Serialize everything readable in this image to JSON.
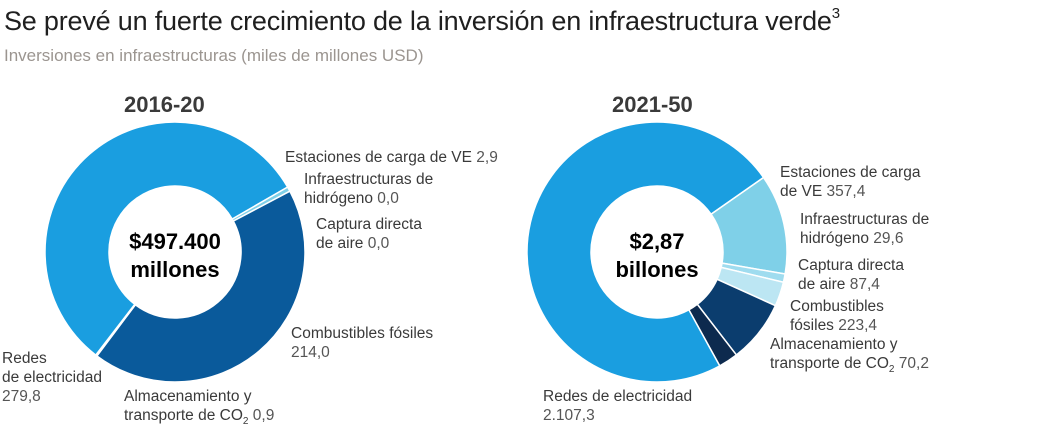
{
  "title": "Se prevé un fuerte crecimiento de la inversión en infraestructura verde",
  "title_footnote": "3",
  "subtitle": "Inversiones en infraestructuras (miles de millones USD)",
  "colors": {
    "redes": "#1a9ee0",
    "combustibles": "#0a5a9b",
    "almacenamiento": "#0d2c5a",
    "estaciones": "#7fd0e8",
    "hidrogeno": "#9fdcef",
    "captura": "#bce6f3",
    "combustibles_2": "#0b3d6e",
    "almacenamiento_2": "#0d2a4e"
  },
  "chart_data": [
    {
      "type": "pie",
      "title": "2016-20",
      "center_line1": "$497.400",
      "center_line2": "millones",
      "series": [
        {
          "name": "Estaciones de carga de VE",
          "value": 2.9,
          "label_value": "2,9"
        },
        {
          "name": "Infraestructuras de hidrógeno",
          "value": 0.0,
          "label_value": "0,0"
        },
        {
          "name": "Captura directa de aire",
          "value": 0.0,
          "label_value": "0,0"
        },
        {
          "name": "Combustibles fósiles",
          "value": 214.0,
          "label_value": "214,0"
        },
        {
          "name": "Almacenamiento y transporte de CO₂",
          "value": 0.9,
          "label_value": "0,9"
        },
        {
          "name": "Redes de electricidad",
          "value": 279.8,
          "label_value": "279,8"
        }
      ]
    },
    {
      "type": "pie",
      "title": "2021-50",
      "center_line1": "$2,87",
      "center_line2": "billones",
      "series": [
        {
          "name": "Estaciones de carga de VE",
          "value": 357.4,
          "label_value": "357,4"
        },
        {
          "name": "Infraestructuras de hidrógeno",
          "value": 29.6,
          "label_value": "29,6"
        },
        {
          "name": "Captura directa de aire",
          "value": 87.4,
          "label_value": "87,4"
        },
        {
          "name": "Combustibles fósiles",
          "value": 223.4,
          "label_value": "223,4"
        },
        {
          "name": "Almacenamiento y transporte de CO₂",
          "value": 70.2,
          "label_value": "70,2"
        },
        {
          "name": "Redes de electricidad",
          "value": 2107.3,
          "label_value": "2.107,3"
        }
      ]
    }
  ],
  "labels_left": {
    "estaciones": "Estaciones de carga de VE",
    "hidrogeno_1": "Infraestructuras de",
    "hidrogeno_2": "hidrógeno",
    "captura_1": "Captura directa",
    "captura_2": "de aire",
    "combustibles": "Combustibles fósiles",
    "almac_1": "Almacenamiento y",
    "almac_2": "transporte de CO",
    "redes_1": "Redes",
    "redes_2": "de electricidad"
  },
  "labels_right": {
    "estaciones_1": "Estaciones de carga",
    "estaciones_2": "de VE",
    "hidrogeno_1": "Infraestructuras de",
    "hidrogeno_2": "hidrógeno",
    "captura_1": "Captura directa",
    "captura_2": "de aire",
    "combustibles_1": "Combustibles",
    "combustibles_2": "fósiles",
    "almac_1": "Almacenamiento y",
    "almac_2": "transporte de CO",
    "redes": "Redes de electricidad"
  },
  "co2_subscript": "2"
}
